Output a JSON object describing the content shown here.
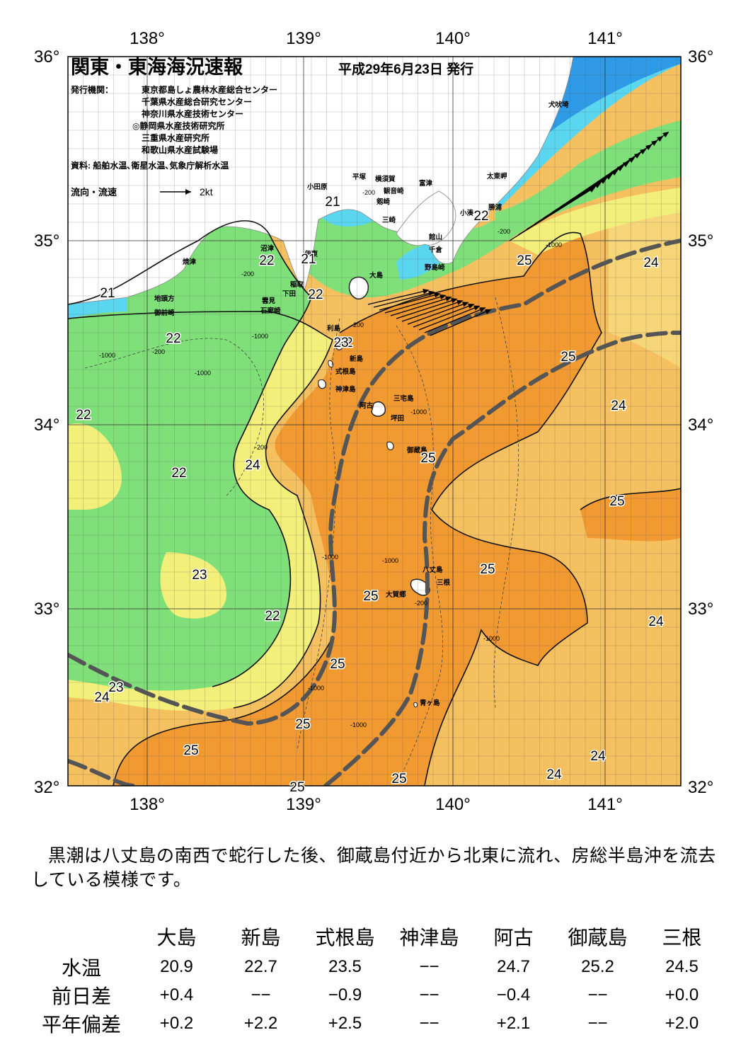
{
  "map": {
    "title": "関東・東海海況速報",
    "issue_date": "平成29年6月23日 発行",
    "issuer_label": "発行機関：",
    "issuers": [
      "東京都島しょ農林水産総合センター",
      "千葉県水産総合研究センター",
      "神奈川県水産技術センター",
      "◎静岡県水産技術研究所",
      "三重県水産研究所",
      "和歌山県水産試験場"
    ],
    "source": "資料: 船舶水温､衛星水温､気象庁解析水温",
    "flow_legend": "流向・流速",
    "flow_scale": "2kt",
    "lon_labels": [
      "138°",
      "139°",
      "140°",
      "141°"
    ],
    "lat_labels": [
      "36°",
      "35°",
      "34°",
      "33°",
      "32°"
    ],
    "place_names": [
      "犬吠埼",
      "太東岬",
      "勝浦",
      "小湊",
      "館山",
      "千倉",
      "野島崎",
      "富津",
      "平塚",
      "横須賀",
      "観音崎",
      "剱崎",
      "三崎",
      "小田原",
      "沼津",
      "伊東",
      "稲取",
      "下田",
      "雲見",
      "石廊崎",
      "焼津",
      "地頭方",
      "御前崎",
      "大島",
      "利島",
      "新島",
      "式根島",
      "神津島",
      "三宅島",
      "阿古",
      "坪田",
      "御蔵島",
      "八丈島",
      "三根",
      "大賀郷",
      "青ヶ島"
    ],
    "isotherm_labels": [
      "21",
      "21",
      "21",
      "22",
      "22",
      "22",
      "22",
      "22",
      "22",
      "22",
      "22",
      "23",
      "23",
      "23",
      "24",
      "24",
      "24",
      "24",
      "24",
      "24",
      "24",
      "25",
      "25",
      "25",
      "25",
      "25",
      "25",
      "25",
      "25",
      "25",
      "25",
      "25"
    ],
    "depth_labels": [
      "-200",
      "-1000"
    ],
    "colors": {
      "t20": "#2f9be6",
      "t21": "#5bd6f0",
      "t22": "#7fe07a",
      "t23": "#f2f07a",
      "t24": "#f5c060",
      "t25": "#f29a32",
      "land": "#ffffff",
      "kuroshio_axis": "#555555"
    }
  },
  "summary": "黒潮は八丈島の南西で蛇行した後、御蔵島付近から北東に流れ、房総半島沖を流去している模様です。",
  "table": {
    "columns": [
      "大島",
      "新島",
      "式根島",
      "神津島",
      "阿古",
      "御蔵島",
      "三根"
    ],
    "rows": [
      {
        "label": "水温",
        "values": [
          "20.9",
          "22.7",
          "23.5",
          "−−",
          "24.7",
          "25.2",
          "24.5"
        ]
      },
      {
        "label": "前日差",
        "values": [
          "+0.4",
          "−−",
          "−0.9",
          "−−",
          "−0.4",
          "−−",
          "+0.0"
        ]
      },
      {
        "label": "平年偏差",
        "values": [
          "+0.2",
          "+2.2",
          "+2.5",
          "−−",
          "+2.1",
          "−−",
          "+2.0"
        ]
      }
    ]
  }
}
